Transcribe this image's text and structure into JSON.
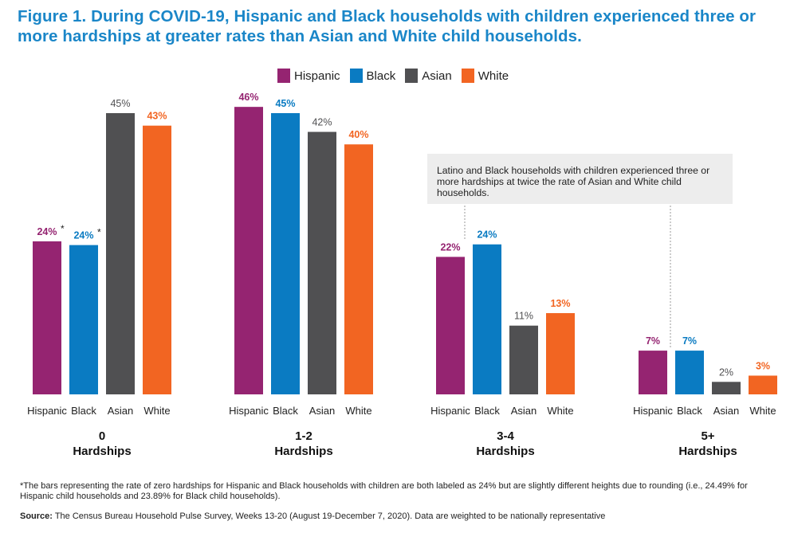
{
  "title": "Figure 1. During COVID-19, Hispanic and Black households with children experienced three or more hardships at greater rates than Asian and White child households.",
  "annotation": "Latino and Black households with children experienced three or more hardships at twice the rate of Asian and White child households.",
  "footnote": "*The bars representing the rate of zero hardships for Hispanic and Black households with children are both labeled as 24% but are slightly different heights due to rounding (i.e., 24.49% for Hispanic child households and 23.89% for Black child households).",
  "source_label": "Source:",
  "source_text": "The Census Bureau Household Pulse Survey, Weeks 13-20 (August 19-December 7, 2020). Data are weighted to be nationally representative",
  "chart_data": {
    "type": "bar",
    "categories": [
      "0 Hardships",
      "1-2 Hardships",
      "3-4 Hardships",
      "5+ Hardships"
    ],
    "category_lines": [
      [
        "0",
        "Hardships"
      ],
      [
        "1-2",
        "Hardships"
      ],
      [
        "3-4",
        "Hardships"
      ],
      [
        "5+",
        "Hardships"
      ]
    ],
    "legend_position": "top-center",
    "grid": false,
    "ylim": [
      0,
      50
    ],
    "series": [
      {
        "name": "Hispanic",
        "color": "#952471",
        "values": [
          24.49,
          46,
          22,
          7
        ],
        "labels": [
          "24%*",
          "46%",
          "22%",
          "7%"
        ]
      },
      {
        "name": "Black",
        "color": "#0a7bc2",
        "values": [
          23.89,
          45,
          24,
          7
        ],
        "labels": [
          "24%*",
          "45%",
          "24%",
          "7%"
        ]
      },
      {
        "name": "Asian",
        "color": "#505052",
        "values": [
          45,
          42,
          11,
          2
        ],
        "labels": [
          "45%",
          "42%",
          "11%",
          "2%"
        ]
      },
      {
        "name": "White",
        "color": "#f26522",
        "values": [
          43,
          40,
          13,
          3
        ],
        "labels": [
          "43%",
          "40%",
          "13%",
          "3%"
        ]
      }
    ]
  }
}
